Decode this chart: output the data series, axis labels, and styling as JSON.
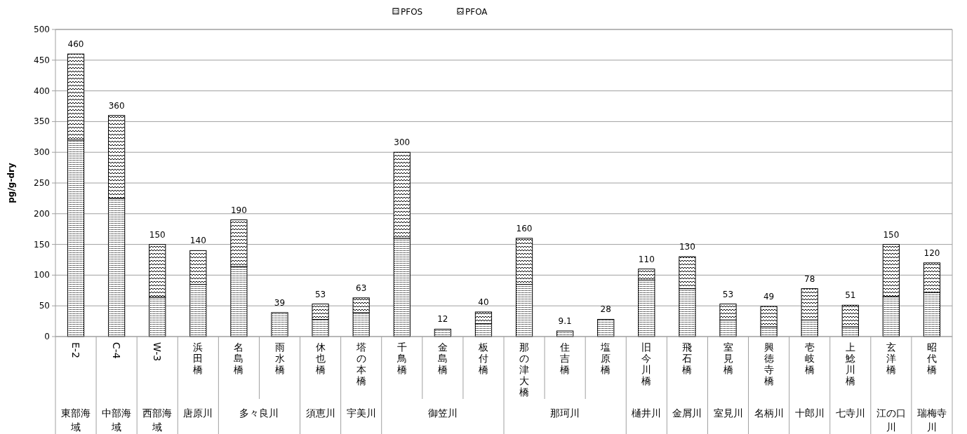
{
  "chart_data": {
    "type": "bar",
    "stacked": true,
    "ylabel": "pg/g-dry",
    "ylim": [
      0,
      500
    ],
    "yticks": [
      0,
      50,
      100,
      150,
      200,
      250,
      300,
      350,
      400,
      450,
      500
    ],
    "grid": "y",
    "legend": "top",
    "categories": [
      "E-2",
      "C-4",
      "W-3",
      "浜田橋",
      "名島橋",
      "雨水橋",
      "休也橋",
      "塔の本橋",
      "千鳥橋",
      "金島橋",
      "板付橋",
      "那の津大橋",
      "住吉橋",
      "塩原橋",
      "旧今川橋",
      "飛石橋",
      "室見橋",
      "興徳寺橋",
      "壱岐橋",
      "上鯰川橋",
      "玄洋橋",
      "昭代橋"
    ],
    "series": [
      {
        "name": "PFOS",
        "color": "#000000",
        "values": [
          320,
          225,
          64,
          85,
          114,
          39,
          28,
          39,
          160,
          12,
          21,
          85,
          9.1,
          28,
          92,
          78,
          27,
          16,
          27,
          16,
          65,
          72
        ]
      },
      {
        "name": "PFOA",
        "color": "#000000",
        "values": [
          140,
          135,
          86,
          55,
          76,
          null,
          25,
          24,
          140,
          null,
          19,
          75,
          null,
          null,
          18,
          52,
          26,
          33,
          51,
          35,
          85,
          48
        ]
      }
    ],
    "totals": [
      "460",
      "360",
      "150",
      "140",
      "190",
      "39",
      "53",
      "63",
      "300",
      "12",
      "40",
      "160",
      "9.1",
      "28",
      "110",
      "130",
      "53",
      "49",
      "78",
      "51",
      "150",
      "120"
    ],
    "annotations": [
      "東部海域",
      "中部海域",
      "西部海域",
      "唐原川",
      "多々良川",
      "須恵川",
      "宇美川",
      "御笠川",
      "那珂川",
      "樋井川",
      "金屑川",
      "室見川",
      "名柄川",
      "十郎川",
      "七寺川",
      "江の口川",
      "瑞梅寺川"
    ]
  }
}
